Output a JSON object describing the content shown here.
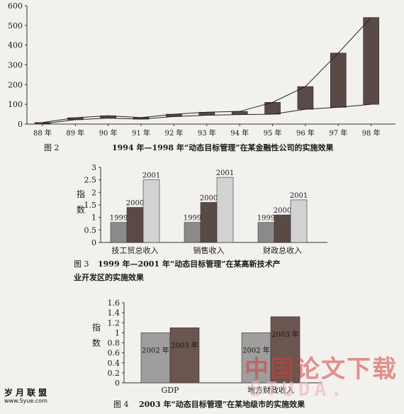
{
  "chart_data": [
    {
      "type": "bar",
      "title": "1994 年—1998 年“动态目标管理”在某金融性公司的实施效果",
      "caption_label": "图 2",
      "categories": [
        "88 年",
        "89 年",
        "90 年",
        "91 年",
        "92 年",
        "93 年",
        "94 年",
        "95 年",
        "96 年",
        "97 年",
        "98 年"
      ],
      "series": [
        {
          "values": [
            [
              2,
              8
            ],
            [
              22,
              32
            ],
            [
              30,
              42
            ],
            [
              25,
              33
            ],
            [
              38,
              50
            ],
            [
              45,
              60
            ],
            [
              48,
              64
            ],
            [
              50,
              110
            ],
            [
              75,
              190
            ],
            [
              85,
              360
            ],
            [
              100,
              540
            ]
          ]
        }
      ],
      "yticks": [
        0,
        100,
        200,
        300,
        400,
        500,
        600
      ],
      "ylim": [
        0,
        600
      ],
      "xlabel": "",
      "ylabel": ""
    },
    {
      "type": "bar",
      "title": "1999 年—2001 年“动态目标管理”在某高新技术产",
      "title_line2": "业开发区的实施效果",
      "caption_label": "图 3",
      "categories": [
        "技工贸总收入",
        "销售收入",
        "财政总收入"
      ],
      "series": [
        {
          "name": "1999",
          "values": [
            0.8,
            0.8,
            0.8
          ]
        },
        {
          "name": "2000",
          "values": [
            1.4,
            1.6,
            1.1
          ]
        },
        {
          "name": "2001",
          "values": [
            2.5,
            2.6,
            1.7
          ]
        }
      ],
      "yticks": [
        "0",
        "0.5",
        "1",
        "1.5",
        "2",
        "2.5",
        "3"
      ],
      "ylim": [
        0,
        3
      ],
      "ylabel": "指数",
      "xlabel": ""
    },
    {
      "type": "bar",
      "title": "2003 年“动态目标管理”在某地级市的实施效果",
      "caption_label": "图 4",
      "categories": [
        "GDP",
        "地方财政收入"
      ],
      "series": [
        {
          "name": "2002 年",
          "values": [
            1.0,
            1.0
          ]
        },
        {
          "name": "2003 年",
          "values": [
            1.1,
            1.32
          ]
        }
      ],
      "yticks": [
        "0",
        "0.2",
        "0.4",
        "0.6",
        "0.8",
        "1",
        "1.2",
        "1.4",
        "1.6"
      ],
      "ylim": [
        0,
        1.6
      ],
      "ylabel": "指数",
      "xlabel": ""
    }
  ],
  "watermarks": {
    "site_logo": "岁月联盟",
    "site_url": "www.Syue.com",
    "cn_mark": "中国论文下载",
    "studa": "STUDA."
  },
  "colors": {
    "dark_bar": "#5a4a46",
    "mid_bar": "#8a8a8a",
    "light_bar": "#d2d2d2",
    "fig4_light": "#a09e9c",
    "fig4_dark": "#6a5550"
  }
}
